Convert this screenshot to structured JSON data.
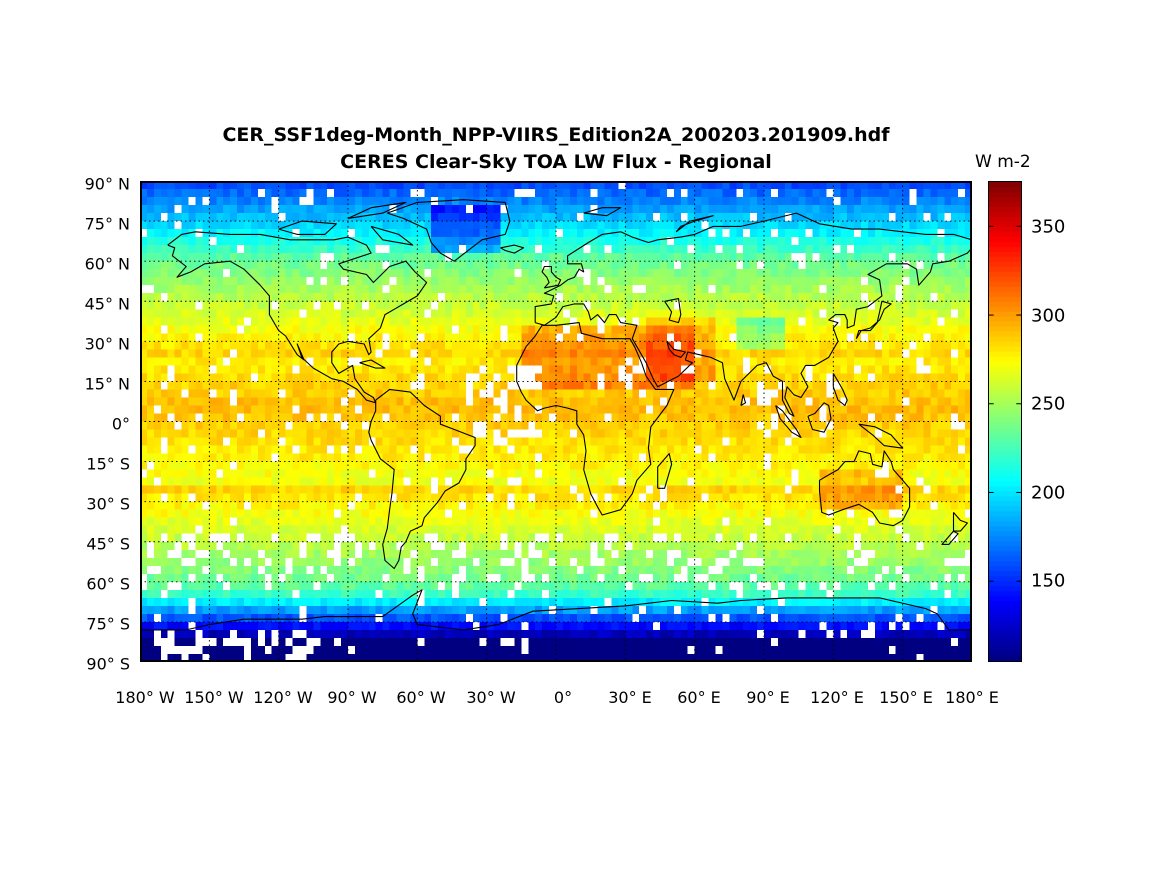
{
  "chart_data": {
    "type": "heatmap",
    "title": "CER_SSF1deg-Month_NPP-VIIRS_Edition2A_200203.201909.hdf",
    "subtitle": "CERES Clear-Sky TOA LW Flux - Regional",
    "colorbar_unit": "W m-2",
    "colorbar_ticks": [
      "350",
      "300",
      "250",
      "200",
      "150"
    ],
    "colorbar_tick_values": [
      350,
      300,
      250,
      200,
      150
    ],
    "colorbar_range": [
      105,
      375
    ],
    "colormap": "jet",
    "lat_tick_labels": [
      "90° N",
      "75° N",
      "60° N",
      "45° N",
      "30° N",
      "15° N",
      "0°",
      "15° S",
      "30° S",
      "45° S",
      "60° S",
      "75° S",
      "90° S"
    ],
    "lat_tick_values": [
      90,
      75,
      60,
      45,
      30,
      15,
      0,
      -15,
      -30,
      -45,
      -60,
      -75,
      -90
    ],
    "lon_tick_labels": [
      "180° W",
      "150° W",
      "120° W",
      "90° W",
      "60° W",
      "30° W",
      "0°",
      "30° E",
      "60° E",
      "90° E",
      "120° E",
      "150° E",
      "180° E"
    ],
    "lon_tick_values": [
      -180,
      -150,
      -120,
      -90,
      -60,
      -30,
      0,
      30,
      60,
      90,
      120,
      150,
      180
    ],
    "xlim": [
      -180,
      180
    ],
    "ylim": [
      -90,
      90
    ],
    "grid": true,
    "missing_value_color": "#ffffff",
    "coastline_color": "#000000"
  }
}
